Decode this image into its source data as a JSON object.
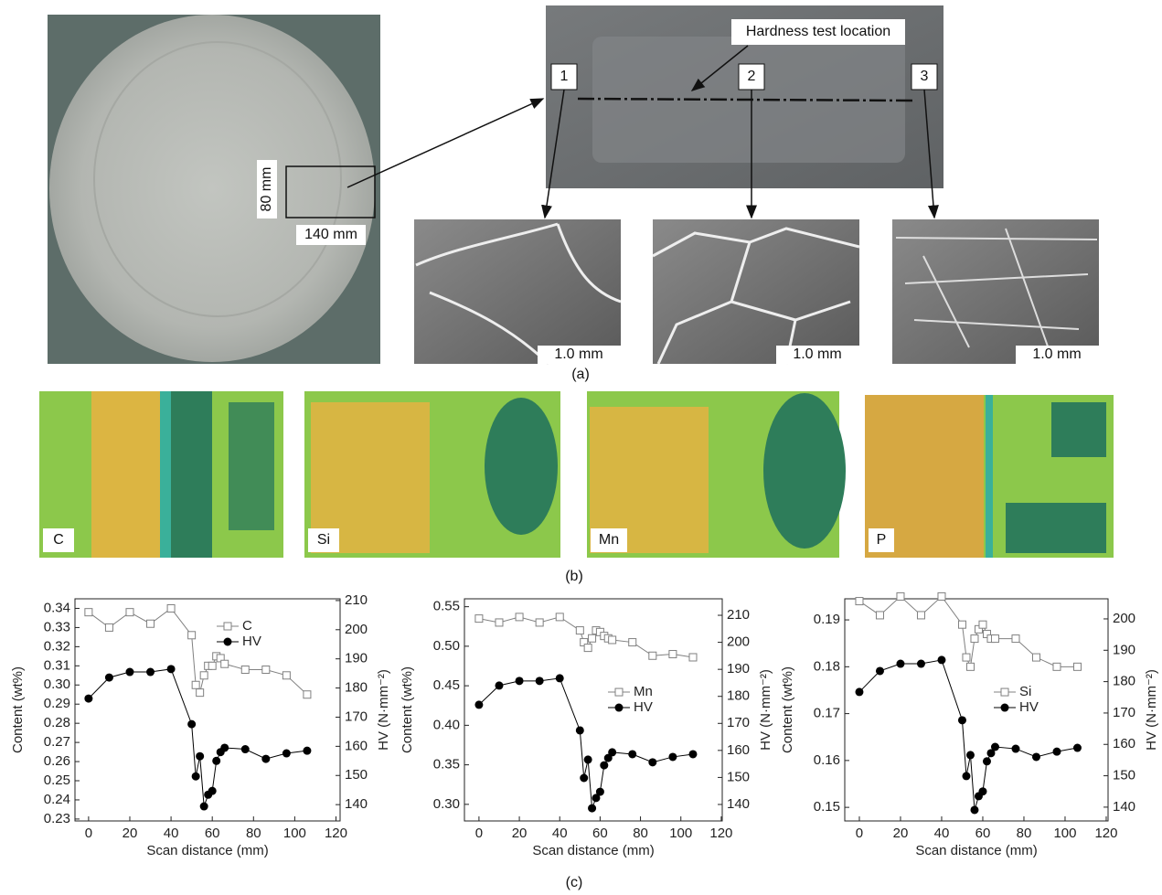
{
  "panel_a": {
    "callout": "Hardness test location",
    "markers": [
      "1",
      "2",
      "3"
    ],
    "height_label": "80 mm",
    "width_label": "140 mm",
    "scale_bars": [
      "1.0 mm",
      "1.0 mm",
      "1.0 mm"
    ],
    "caption": "(a)"
  },
  "panel_b": {
    "maps": [
      "C",
      "Si",
      "Mn",
      "P"
    ],
    "caption": "(b)"
  },
  "panel_c": {
    "caption": "(c)"
  },
  "chart_data": [
    {
      "type": "line",
      "x_label": "Scan distance (mm)",
      "y_label": "Content (wt%)",
      "y2_label": "HV (N·mm⁻²)",
      "legend": "upper right",
      "x": [
        0,
        10,
        20,
        30,
        40,
        50,
        52,
        54,
        56,
        58,
        60,
        62,
        64,
        66,
        76,
        86,
        96,
        106
      ],
      "xlim": [
        -6.6,
        122
      ],
      "xticks": [
        0,
        20,
        40,
        60,
        80,
        100,
        120
      ],
      "ylim": [
        0.229,
        0.345
      ],
      "yticks": [
        0.23,
        0.24,
        0.25,
        0.26,
        0.27,
        0.28,
        0.29,
        {
          "value": 0.3,
          "label": "0.30"
        },
        0.31,
        0.32,
        0.33,
        0.34
      ],
      "y2lim": [
        134.4,
        210.6
      ],
      "y2ticks": [
        140,
        150,
        160,
        170,
        180,
        190,
        200,
        210
      ],
      "series": [
        {
          "name": "C",
          "color": "#808080",
          "marker": "square",
          "values": [
            0.338,
            0.33,
            0.338,
            0.332,
            0.34,
            0.326,
            0.3,
            0.296,
            0.305,
            0.31,
            0.31,
            0.315,
            0.314,
            0.311,
            0.308,
            0.308,
            0.305,
            0.295
          ]
        },
        {
          "name": "HV",
          "color": "#000000",
          "marker": "circle",
          "axis": "y2",
          "values": [
            176.4,
            183.6,
            185.5,
            185.5,
            186.5,
            167.6,
            149.7,
            156.6,
            139.4,
            143.4,
            144.7,
            155,
            158,
            159.5,
            159,
            155.7,
            157.6,
            158.5
          ]
        }
      ]
    },
    {
      "type": "line",
      "x_label": "Scan distance (mm)",
      "y_label": "Content (wt%)",
      "y2_label": "HV (N·mm⁻²)",
      "legend": "center right",
      "x": [
        0,
        10,
        20,
        30,
        40,
        50,
        52,
        54,
        56,
        58,
        60,
        62,
        64,
        66,
        76,
        86,
        96,
        106
      ],
      "xlim": [
        -7.2,
        120.5
      ],
      "xticks": [
        0,
        20,
        40,
        60,
        80,
        100,
        120
      ],
      "ylim": [
        0.279,
        0.56
      ],
      "yticks": [
        {
          "value": 0.3,
          "label": "0.30"
        },
        0.35,
        {
          "value": 0.4,
          "label": "0.40"
        },
        0.45,
        {
          "value": 0.5,
          "label": "0.50"
        },
        0.55
      ],
      "y2lim": [
        133.9,
        216.1
      ],
      "y2ticks": [
        140,
        150,
        160,
        170,
        180,
        190,
        200,
        210
      ],
      "series": [
        {
          "name": "Mn",
          "color": "#808080",
          "marker": "square",
          "values": [
            0.535,
            0.53,
            0.537,
            0.53,
            0.537,
            0.52,
            0.505,
            0.498,
            0.51,
            0.52,
            0.518,
            0.513,
            0.51,
            0.508,
            0.505,
            0.488,
            0.49,
            0.486
          ]
        },
        {
          "name": "HV",
          "color": "#000000",
          "marker": "circle",
          "axis": "y2",
          "values": [
            176.9,
            184,
            185.7,
            185.7,
            186.7,
            167.4,
            149.8,
            156.6,
            138.6,
            142.4,
            144.7,
            154.5,
            157.2,
            159.3,
            158.6,
            155.6,
            157.6,
            158.6
          ]
        }
      ]
    },
    {
      "type": "line",
      "x_label": "Scan distance (mm)",
      "y_label": "Content (wt%)",
      "y2_label": "HV (N·mm⁻²)",
      "legend": "center right",
      "x": [
        0,
        10,
        20,
        30,
        40,
        50,
        52,
        54,
        56,
        58,
        60,
        62,
        64,
        66,
        76,
        86,
        96,
        106
      ],
      "xlim": [
        -7.1,
        120.9
      ],
      "xticks": [
        0,
        20,
        40,
        60,
        80,
        100,
        120
      ],
      "ylim": [
        0.1471,
        0.1945
      ],
      "yticks": [
        0.15,
        0.16,
        0.17,
        0.18,
        0.19
      ],
      "y2lim": [
        135.6,
        206.4
      ],
      "y2ticks": [
        140,
        150,
        160,
        170,
        180,
        190,
        200
      ],
      "series": [
        {
          "name": "Si",
          "color": "#808080",
          "marker": "square",
          "values": [
            0.194,
            0.191,
            0.195,
            0.191,
            0.195,
            0.189,
            0.182,
            0.18,
            0.186,
            0.188,
            0.189,
            0.187,
            0.186,
            0.186,
            0.186,
            0.182,
            0.18,
            0.18
          ]
        },
        {
          "name": "HV",
          "color": "#000000",
          "marker": "circle",
          "axis": "y2",
          "values": [
            176.7,
            183.4,
            185.7,
            185.7,
            186.9,
            167.7,
            149.9,
            156.6,
            139.1,
            143.5,
            145,
            154.6,
            157.2,
            159.2,
            158.6,
            156,
            157.7,
            158.9
          ]
        }
      ]
    }
  ]
}
